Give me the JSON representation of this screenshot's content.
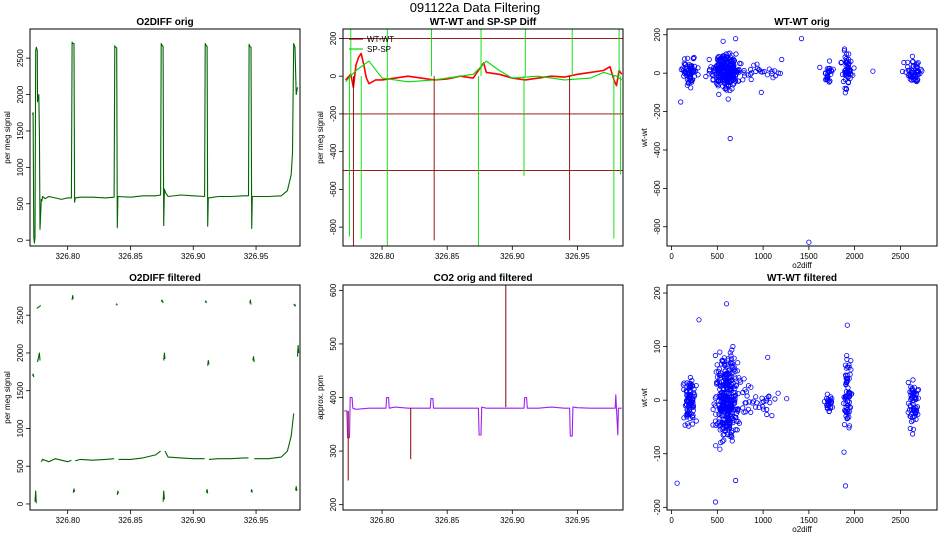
{
  "figure": {
    "title": "091122a   Data Filtering"
  },
  "colors": {
    "o2": "#006400",
    "wt": "#ff0000",
    "sp": "#00dd00",
    "ref": "#8b0000",
    "co2": "#a020f0",
    "co2_spike": "#8b0000",
    "pts": "#0000ff"
  },
  "chart_data": [
    {
      "id": "o2diff-orig",
      "type": "line",
      "title": "O2DIFF orig",
      "xlabel": "",
      "ylabel": "per meg signal",
      "xlim": [
        326.77,
        326.985
      ],
      "ylim": [
        -80,
        2900
      ],
      "xticks": [
        326.8,
        326.85,
        326.9,
        326.95
      ],
      "yticks": [
        0,
        500,
        1000,
        1500,
        2000,
        2500
      ],
      "series": [
        {
          "name": "O2DIFF",
          "color_key": "o2",
          "x": [
            326.772,
            326.7725,
            326.773,
            326.7735,
            326.774,
            326.7745,
            326.775,
            326.7758,
            326.776,
            326.777,
            326.7775,
            326.778,
            326.779,
            326.7795,
            326.78,
            326.782,
            326.785,
            326.79,
            326.795,
            326.8,
            326.803,
            326.8035,
            326.804,
            326.805,
            326.8055,
            326.806,
            326.81,
            326.82,
            326.83,
            326.837,
            326.8375,
            326.838,
            326.839,
            326.8395,
            326.84,
            326.85,
            326.86,
            326.87,
            326.874,
            326.8745,
            326.875,
            326.876,
            326.8765,
            326.877,
            326.878,
            326.88,
            326.89,
            326.9,
            326.909,
            326.9095,
            326.91,
            326.911,
            326.9115,
            326.912,
            326.92,
            326.93,
            326.94,
            326.944,
            326.9445,
            326.945,
            326.946,
            326.9465,
            326.947,
            326.96,
            326.97,
            326.975,
            326.978,
            326.979,
            326.98,
            326.981,
            326.982,
            326.983
          ],
          "y": [
            1720,
            1750,
            50,
            -40,
            40,
            2600,
            2650,
            2600,
            1900,
            2000,
            1500,
            150,
            560,
            540,
            600,
            570,
            600,
            580,
            560,
            580,
            580,
            2720,
            2700,
            2700,
            520,
            580,
            590,
            590,
            580,
            590,
            2670,
            2650,
            2640,
            170,
            600,
            590,
            610,
            610,
            620,
            2700,
            2680,
            2660,
            200,
            700,
            650,
            600,
            620,
            610,
            600,
            2700,
            2680,
            2660,
            190,
            580,
            600,
            600,
            610,
            610,
            2690,
            2660,
            2650,
            160,
            600,
            600,
            610,
            680,
            900,
            1200,
            2700,
            2650,
            2000,
            2100
          ]
        }
      ]
    },
    {
      "id": "wt-sp-diff",
      "type": "line",
      "title": "WT-WT and SP-SP Diff",
      "xlabel": "",
      "ylabel": "per meg signal",
      "xlim": [
        326.77,
        326.985
      ],
      "ylim": [
        -900,
        250
      ],
      "xticks": [
        326.8,
        326.85,
        326.9,
        326.95
      ],
      "yticks": [
        -800,
        -600,
        -400,
        -200,
        0,
        200
      ],
      "hlines": [
        200,
        -200,
        -500
      ],
      "legend": [
        "WT-WT",
        "SP-SP"
      ],
      "series": [
        {
          "name": "WT-WT",
          "color_key": "wt",
          "x": [
            326.772,
            326.776,
            326.778,
            326.78,
            326.782,
            326.784,
            326.786,
            326.788,
            326.79,
            326.795,
            326.8,
            326.81,
            326.82,
            326.83,
            326.84,
            326.85,
            326.86,
            326.87,
            326.875,
            326.878,
            326.88,
            326.89,
            326.9,
            326.91,
            326.92,
            326.93,
            326.94,
            326.95,
            326.96,
            326.97,
            326.975,
            326.978,
            326.98,
            326.982,
            326.984
          ],
          "y": [
            -20,
            10,
            -60,
            60,
            100,
            120,
            60,
            -10,
            -40,
            -20,
            -20,
            -10,
            0,
            -10,
            -20,
            -15,
            0,
            -10,
            40,
            70,
            20,
            10,
            -10,
            -20,
            -10,
            0,
            -5,
            10,
            20,
            30,
            50,
            -20,
            -50,
            30,
            10
          ]
        },
        {
          "name": "SP-SP",
          "color_key": "sp",
          "x": [
            326.772,
            326.78,
            326.79,
            326.8,
            326.82,
            326.84,
            326.86,
            326.87,
            326.876,
            326.88,
            326.89,
            326.9,
            326.92,
            326.94,
            326.96,
            326.97,
            326.98,
            326.984
          ],
          "y": [
            -30,
            30,
            80,
            -10,
            -30,
            -20,
            0,
            10,
            50,
            80,
            30,
            -10,
            0,
            -20,
            -10,
            20,
            0,
            -20
          ]
        }
      ],
      "spikes": [
        {
          "x": 326.775,
          "y": -850
        },
        {
          "x": 326.778,
          "y": -900
        },
        {
          "x": 326.784,
          "y": -860
        },
        {
          "x": 326.804,
          "y": -900
        },
        {
          "x": 326.84,
          "y": -870
        },
        {
          "x": 326.874,
          "y": -900
        },
        {
          "x": 326.909,
          "y": -530
        },
        {
          "x": 326.944,
          "y": -870
        },
        {
          "x": 326.978,
          "y": -860
        },
        {
          "x": 326.983,
          "y": -520
        }
      ],
      "up_spikes": [
        326.776,
        326.804,
        326.838,
        326.876,
        326.91,
        326.946,
        326.982
      ]
    },
    {
      "id": "wt-wt-orig",
      "type": "scatter",
      "title": "WT-WT orig",
      "xlabel": "o2diff",
      "ylabel": "wt-wt",
      "xlim": [
        -50,
        2900
      ],
      "ylim": [
        -900,
        230
      ],
      "xticks": [
        0,
        500,
        1000,
        1500,
        2000,
        2500
      ],
      "yticks": [
        -800,
        -600,
        -400,
        -200,
        0,
        200
      ],
      "clusters": [
        {
          "cx": 200,
          "cy": 10,
          "sx": 40,
          "sy": 35,
          "n": 70
        },
        {
          "cx": 600,
          "cy": 10,
          "sx": 70,
          "sy": 45,
          "n": 260
        },
        {
          "cx": 850,
          "cy": 10,
          "sx": 200,
          "sy": 25,
          "n": 40
        },
        {
          "cx": 1720,
          "cy": 0,
          "sx": 25,
          "sy": 20,
          "n": 25
        },
        {
          "cx": 1920,
          "cy": 20,
          "sx": 25,
          "sy": 50,
          "n": 60
        },
        {
          "cx": 2640,
          "cy": 5,
          "sx": 40,
          "sy": 25,
          "n": 55
        }
      ],
      "outliers": [
        [
          100,
          -150
        ],
        [
          1500,
          -880
        ],
        [
          640,
          -340
        ],
        [
          700,
          180
        ],
        [
          980,
          -100
        ],
        [
          1420,
          180
        ],
        [
          1620,
          30
        ],
        [
          2200,
          10
        ]
      ]
    },
    {
      "id": "o2diff-filtered",
      "type": "line",
      "title": "O2DIFF filtered",
      "xlabel": "",
      "ylabel": "per meg signal",
      "xlim": [
        326.77,
        326.985
      ],
      "ylim": [
        -80,
        2900
      ],
      "xticks": [
        326.8,
        326.85,
        326.9,
        326.95
      ],
      "yticks": [
        0,
        500,
        1000,
        1500,
        2000,
        2500
      ],
      "segments": [
        {
          "x": [
            326.7755,
            326.777,
            326.778,
            326.7785
          ],
          "y": [
            2590,
            2610,
            2620,
            2630
          ]
        },
        {
          "x": [
            326.8035,
            326.804,
            326.8045
          ],
          "y": [
            2700,
            2760,
            2720
          ]
        },
        {
          "x": [
            326.8385,
            326.839,
            326.8395
          ],
          "y": [
            2640,
            2650,
            2630
          ]
        },
        {
          "x": [
            326.8745,
            326.875,
            326.8755,
            326.876
          ],
          "y": [
            2680,
            2700,
            2690,
            2660
          ]
        },
        {
          "x": [
            326.9095,
            326.91,
            326.9105
          ],
          "y": [
            2670,
            2690,
            2660
          ]
        },
        {
          "x": [
            326.945,
            326.9455,
            326.946
          ],
          "y": [
            2660,
            2700,
            2640
          ]
        },
        {
          "x": [
            326.98,
            326.981,
            326.9815
          ],
          "y": [
            2650,
            2620,
            2640
          ]
        },
        {
          "x": [
            326.776,
            326.7775,
            326.778
          ],
          "y": [
            1880,
            2000,
            1900
          ]
        },
        {
          "x": [
            326.8765,
            326.877,
            326.8775
          ],
          "y": [
            1900,
            2000,
            1920
          ]
        },
        {
          "x": [
            326.9115,
            326.912,
            326.9125
          ],
          "y": [
            1830,
            1900,
            1850
          ]
        },
        {
          "x": [
            326.9475,
            326.948,
            326.9485
          ],
          "y": [
            1900,
            1950,
            1880
          ]
        },
        {
          "x": [
            326.983,
            326.9835,
            326.984
          ],
          "y": [
            1950,
            2100,
            2000
          ]
        },
        {
          "x": [
            326.772,
            326.7725,
            326.773
          ],
          "y": [
            1700,
            1720,
            1680
          ]
        },
        {
          "x": [
            326.774,
            326.7745,
            326.775
          ],
          "y": [
            30,
            170,
            10
          ]
        },
        {
          "x": [
            326.8045,
            326.805,
            326.8055
          ],
          "y": [
            150,
            200,
            160
          ]
        },
        {
          "x": [
            326.8395,
            326.84,
            326.8405
          ],
          "y": [
            120,
            170,
            140
          ]
        },
        {
          "x": [
            326.876,
            326.8765,
            326.877
          ],
          "y": [
            30,
            170,
            60
          ]
        },
        {
          "x": [
            326.9105,
            326.911,
            326.9115
          ],
          "y": [
            150,
            190,
            140
          ]
        },
        {
          "x": [
            326.946,
            326.9465,
            326.947
          ],
          "y": [
            160,
            190,
            150
          ]
        },
        {
          "x": [
            326.9815,
            326.982,
            326.9825
          ],
          "y": [
            180,
            230,
            170
          ]
        },
        {
          "x": [
            326.779,
            326.78,
            326.785,
            326.79,
            326.795,
            326.8,
            326.803
          ],
          "y": [
            560,
            590,
            560,
            600,
            580,
            560,
            580
          ]
        },
        {
          "x": [
            326.806,
            326.81,
            326.82,
            326.83,
            326.837
          ],
          "y": [
            570,
            590,
            580,
            590,
            600
          ]
        },
        {
          "x": [
            326.8405,
            326.85,
            326.86,
            326.87,
            326.874
          ],
          "y": [
            590,
            590,
            610,
            650,
            700
          ]
        },
        {
          "x": [
            326.8775,
            326.88,
            326.89,
            326.9,
            326.909
          ],
          "y": [
            700,
            620,
            610,
            600,
            600
          ]
        },
        {
          "x": [
            326.9125,
            326.92,
            326.93,
            326.94,
            326.944
          ],
          "y": [
            590,
            600,
            600,
            610,
            610
          ]
        },
        {
          "x": [
            326.9485,
            326.96,
            326.97,
            326.975,
            326.978,
            326.98
          ],
          "y": [
            600,
            600,
            620,
            700,
            900,
            1200
          ]
        }
      ]
    },
    {
      "id": "co2-orig-filtered",
      "type": "line",
      "title": "CO2 orig and filtered",
      "xlabel": "",
      "ylabel": "approx. ppm",
      "xlim": [
        326.77,
        326.985
      ],
      "ylim": [
        190,
        610
      ],
      "xticks": [
        326.8,
        326.85,
        326.9,
        326.95
      ],
      "yticks": [
        200,
        300,
        400,
        500,
        600
      ],
      "series": [
        {
          "name": "CO2",
          "color_key": "co2",
          "x": [
            326.771,
            326.773,
            326.7735,
            326.775,
            326.7755,
            326.777,
            326.7775,
            326.78,
            326.79,
            326.8,
            326.803,
            326.8035,
            326.805,
            326.8055,
            326.81,
            326.82,
            326.83,
            326.837,
            326.8375,
            326.839,
            326.8395,
            326.85,
            326.86,
            326.87,
            326.874,
            326.8745,
            326.876,
            326.8765,
            326.88,
            326.89,
            326.9,
            326.909,
            326.9095,
            326.911,
            326.9115,
            326.92,
            326.93,
            326.94,
            326.944,
            326.9445,
            326.946,
            326.9465,
            326.95,
            326.96,
            326.97,
            326.979,
            326.9795,
            326.981,
            326.9815,
            326.984
          ],
          "y": [
            375,
            375,
            325,
            325,
            400,
            400,
            380,
            378,
            380,
            380,
            380,
            400,
            400,
            380,
            382,
            380,
            380,
            380,
            398,
            398,
            380,
            380,
            380,
            380,
            380,
            330,
            330,
            382,
            380,
            380,
            380,
            380,
            400,
            400,
            380,
            380,
            382,
            380,
            380,
            328,
            328,
            382,
            381,
            380,
            380,
            380,
            405,
            330,
            380,
            380
          ]
        }
      ],
      "spikes": [
        {
          "x": 326.774,
          "lo": 245,
          "hi": 375
        },
        {
          "x": 326.822,
          "lo": 285,
          "hi": 381
        },
        {
          "x": 326.895,
          "lo": 382,
          "hi": 610
        }
      ]
    },
    {
      "id": "wt-wt-filtered",
      "type": "scatter",
      "title": "WT-WT filtered",
      "xlabel": "o2diff",
      "ylabel": "wt-wt",
      "xlim": [
        -50,
        2900
      ],
      "ylim": [
        -205,
        215
      ],
      "xticks": [
        0,
        500,
        1000,
        1500,
        2000,
        2500
      ],
      "yticks": [
        -200,
        -100,
        0,
        100,
        200
      ],
      "clusters": [
        {
          "cx": 200,
          "cy": 0,
          "sx": 30,
          "sy": 25,
          "n": 90
        },
        {
          "cx": 600,
          "cy": 0,
          "sx": 60,
          "sy": 40,
          "n": 320
        },
        {
          "cx": 900,
          "cy": -5,
          "sx": 150,
          "sy": 18,
          "n": 45
        },
        {
          "cx": 1720,
          "cy": -5,
          "sx": 20,
          "sy": 10,
          "n": 25
        },
        {
          "cx": 1920,
          "cy": 10,
          "sx": 20,
          "sy": 30,
          "n": 70
        },
        {
          "cx": 2640,
          "cy": -5,
          "sx": 35,
          "sy": 20,
          "n": 65
        }
      ],
      "outliers": [
        [
          60,
          -155
        ],
        [
          480,
          -190
        ],
        [
          600,
          180
        ],
        [
          300,
          150
        ],
        [
          1920,
          140
        ],
        [
          1900,
          -160
        ],
        [
          700,
          -150
        ],
        [
          1050,
          80
        ]
      ]
    }
  ]
}
